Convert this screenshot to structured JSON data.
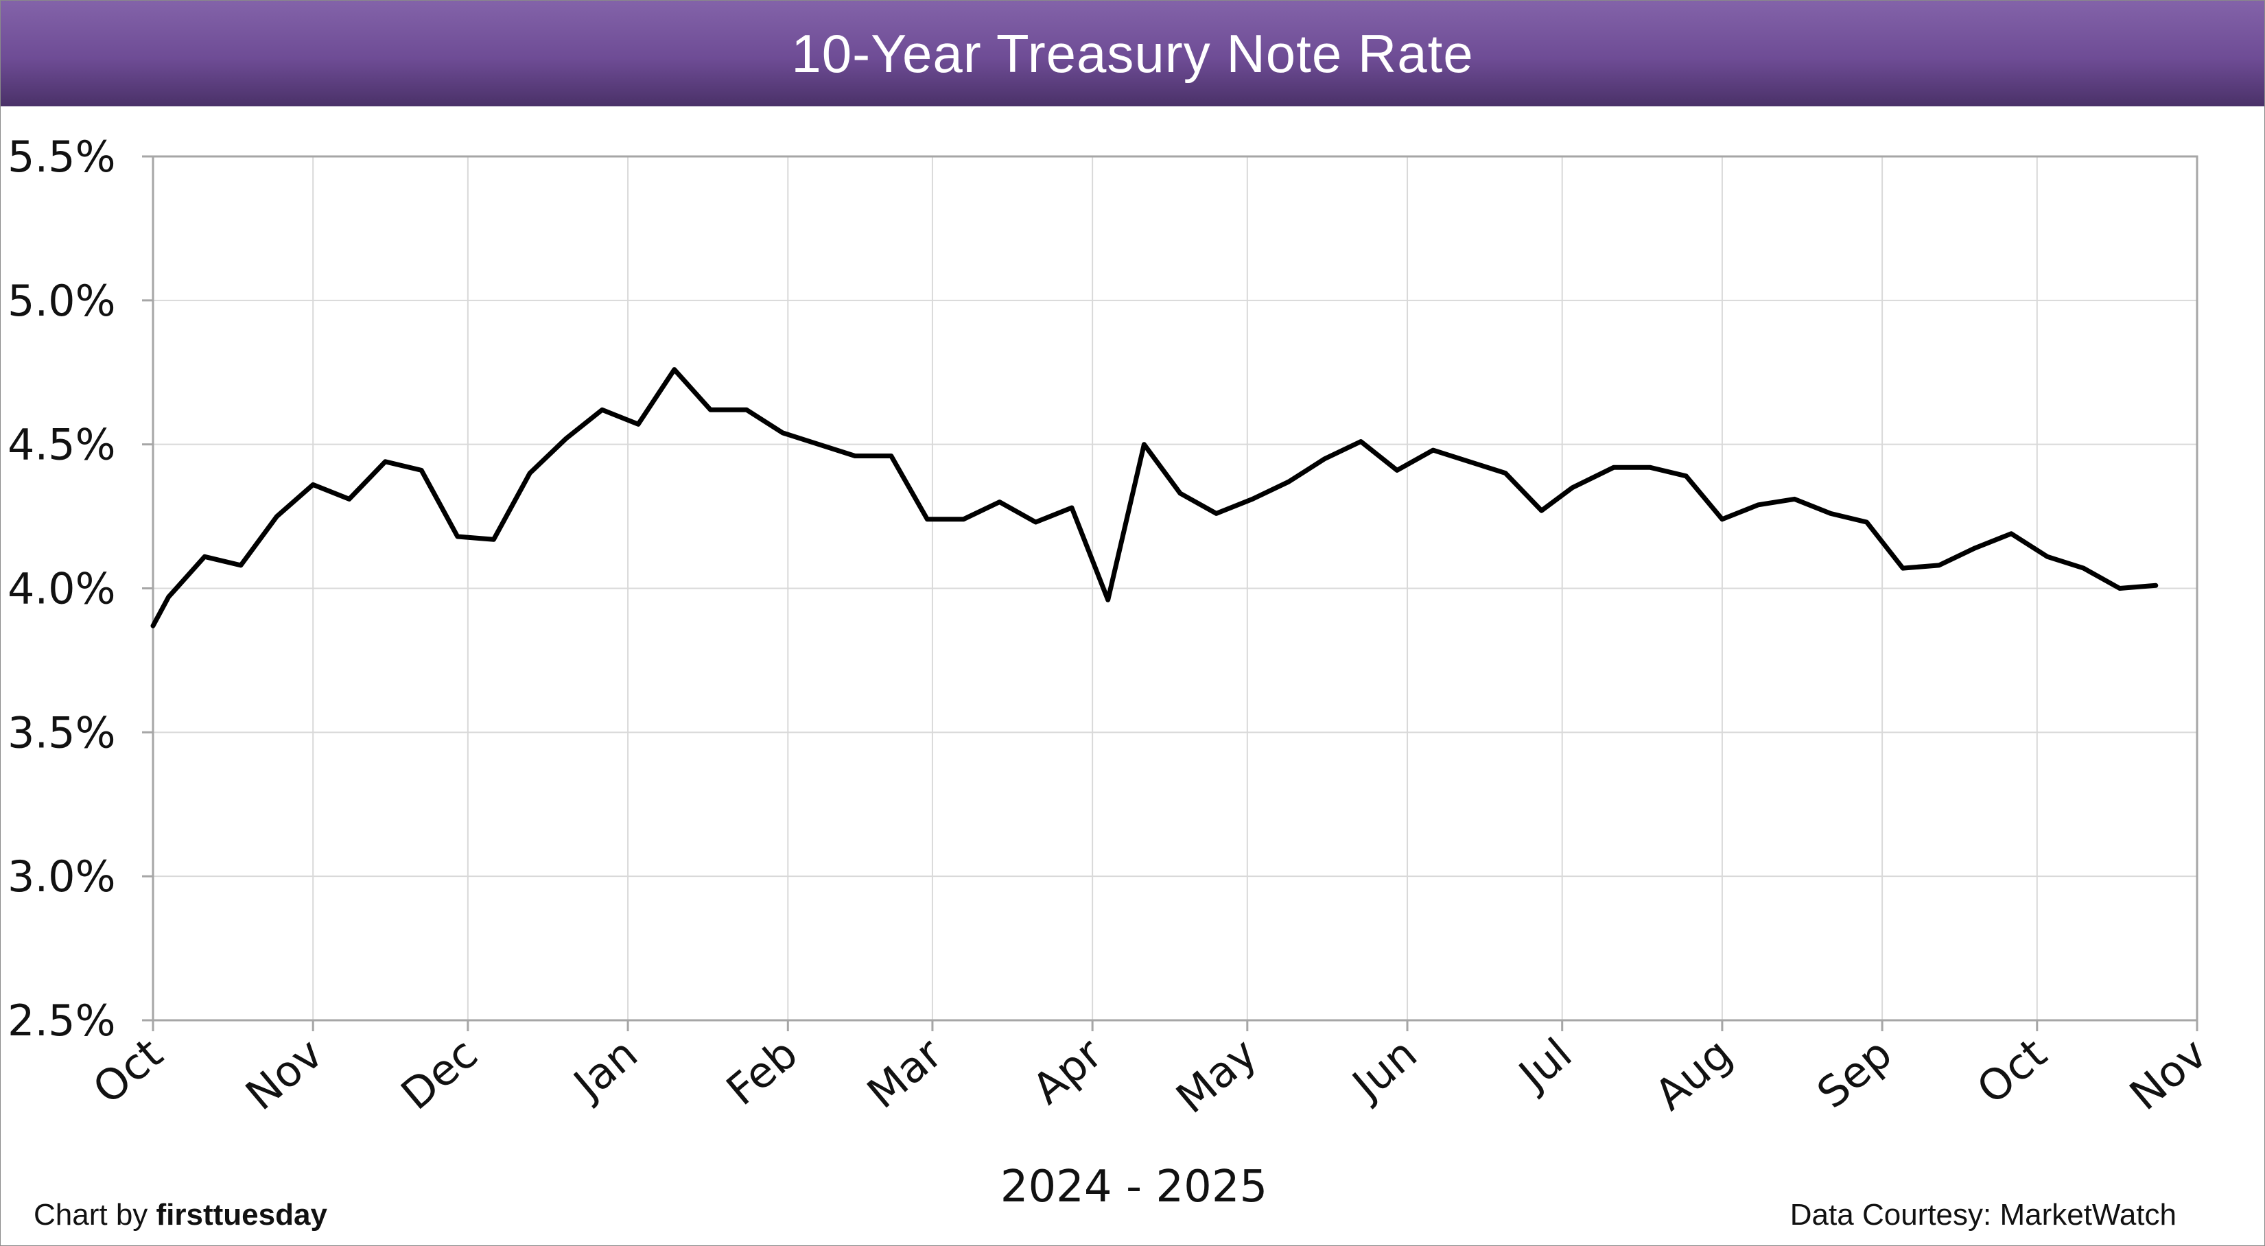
{
  "title": "10-Year Treasury Note Rate",
  "footer": {
    "credit_prefix": "Chart by",
    "credit_brand": "firsttuesday",
    "source": "Data Courtesy: MarketWatch"
  },
  "colors": {
    "header_top": "#8363a9",
    "header_bottom": "#4a3168",
    "line": "#000000",
    "grid": "#d9d9d9",
    "axis": "#a6a6a6"
  },
  "chart_data": {
    "type": "line",
    "title": "10-Year Treasury Note Rate",
    "xlabel": "2024 - 2025",
    "ylabel": "",
    "ylim": [
      2.5,
      5.5
    ],
    "xlim": [
      "2024-10-01",
      "2025-11-01"
    ],
    "yticks": [
      "2.5%",
      "3.0%",
      "3.5%",
      "4.0%",
      "4.5%",
      "5.0%",
      "5.5%"
    ],
    "ytick_values": [
      2.5,
      3.0,
      3.5,
      4.0,
      4.5,
      5.0,
      5.5
    ],
    "xticks": [
      "Oct",
      "Nov",
      "Dec",
      "Jan",
      "Feb",
      "Mar",
      "Apr",
      "May",
      "Jun",
      "Jul",
      "Aug",
      "Sep",
      "Oct",
      "Nov"
    ],
    "xtick_dates": [
      "2024-10-01",
      "2024-11-01",
      "2024-12-01",
      "2025-01-01",
      "2025-02-01",
      "2025-03-01",
      "2025-04-01",
      "2025-05-01",
      "2025-06-01",
      "2025-07-01",
      "2025-08-01",
      "2025-09-01",
      "2025-10-01",
      "2025-11-01"
    ],
    "grid": true,
    "legend": "none",
    "series": [
      {
        "x": [
          "2024-10-01",
          "2024-10-04",
          "2024-10-11",
          "2024-10-18",
          "2024-10-25",
          "2024-11-01",
          "2024-11-08",
          "2024-11-15",
          "2024-11-22",
          "2024-11-29",
          "2024-12-06",
          "2024-12-13",
          "2024-12-20",
          "2024-12-27",
          "2025-01-03",
          "2025-01-10",
          "2025-01-17",
          "2025-01-24",
          "2025-01-31",
          "2025-02-07",
          "2025-02-14",
          "2025-02-21",
          "2025-02-28",
          "2025-03-07",
          "2025-03-14",
          "2025-03-21",
          "2025-03-28",
          "2025-04-04",
          "2025-04-11",
          "2025-04-18",
          "2025-04-25",
          "2025-05-02",
          "2025-05-09",
          "2025-05-16",
          "2025-05-23",
          "2025-05-30",
          "2025-06-06",
          "2025-06-13",
          "2025-06-20",
          "2025-06-27",
          "2025-07-03",
          "2025-07-11",
          "2025-07-18",
          "2025-07-25",
          "2025-08-01",
          "2025-08-08",
          "2025-08-15",
          "2025-08-22",
          "2025-08-29",
          "2025-09-05",
          "2025-09-12",
          "2025-09-19",
          "2025-09-26",
          "2025-10-03",
          "2025-10-10",
          "2025-10-17",
          "2025-10-24"
        ],
        "values": [
          3.87,
          3.97,
          4.11,
          4.08,
          4.25,
          4.36,
          4.31,
          4.44,
          4.41,
          4.18,
          4.17,
          4.4,
          4.52,
          4.62,
          4.57,
          4.76,
          4.62,
          4.62,
          4.54,
          4.5,
          4.46,
          4.46,
          4.24,
          4.24,
          4.3,
          4.23,
          4.28,
          3.96,
          4.5,
          4.33,
          4.26,
          4.31,
          4.37,
          4.45,
          4.51,
          4.41,
          4.48,
          4.44,
          4.4,
          4.27,
          4.35,
          4.42,
          4.42,
          4.39,
          4.24,
          4.29,
          4.31,
          4.26,
          4.23,
          4.07,
          4.08,
          4.14,
          4.19,
          4.11,
          4.07,
          4.0,
          4.01
        ]
      }
    ]
  }
}
